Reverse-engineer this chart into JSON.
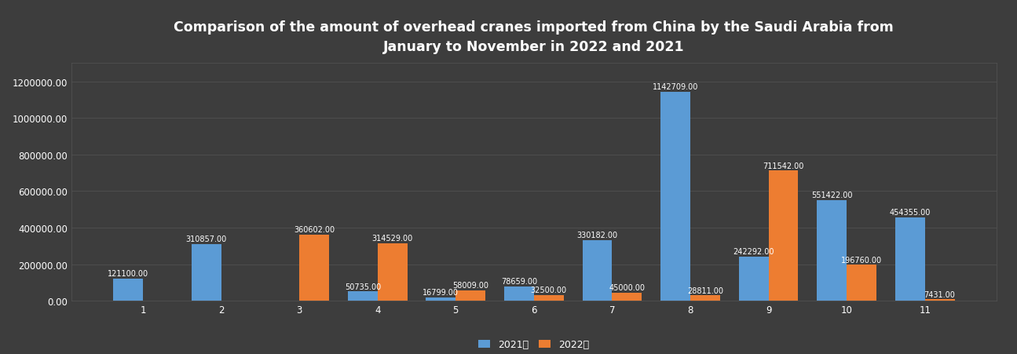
{
  "title": "Comparison of the amount of overhead cranes imported from China by the Saudi Arabia from\nJanuary to November in 2022 and 2021",
  "months": [
    1,
    2,
    3,
    4,
    5,
    6,
    7,
    8,
    9,
    10,
    11
  ],
  "values_2021": [
    121100,
    310857,
    0,
    50735,
    16799,
    78659,
    330182,
    1142709,
    242292,
    551422,
    454355
  ],
  "values_2022": [
    0,
    0,
    360602,
    314529,
    58009,
    32500,
    45000,
    28811,
    711542,
    196760,
    7431
  ],
  "color_2021": "#5b9bd5",
  "color_2022": "#ed7d31",
  "legend_2021": "2021年",
  "legend_2022": "2022年",
  "bg_color": "#3d3d3d",
  "plot_bg_color": "#3d3d3d",
  "grid_color": "#555555",
  "text_color": "#ffffff",
  "ylim": [
    0,
    1300000
  ],
  "bar_width": 0.38,
  "title_fontsize": 12.5,
  "label_fontsize": 7,
  "tick_fontsize": 8.5,
  "legend_fontsize": 9
}
